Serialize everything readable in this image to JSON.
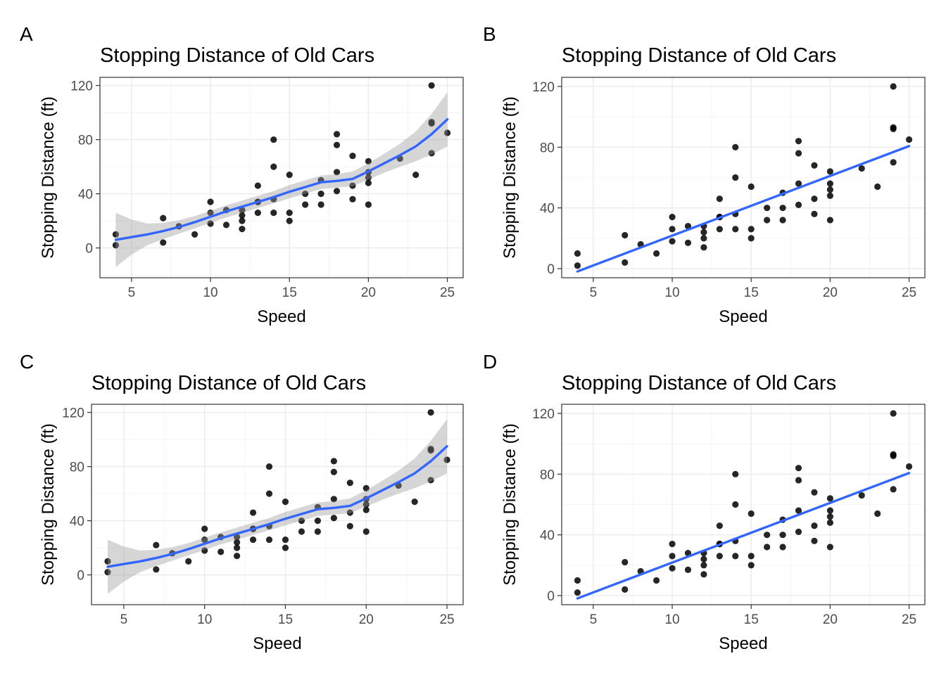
{
  "colors": {
    "point": "#000000",
    "fit_line": "#3366FF",
    "ribbon": "#999999",
    "panel_border": "#333333",
    "grid": "#ebebeb",
    "tick_text": "#4d4d4d"
  },
  "shared": {
    "speed": [
      4,
      4,
      7,
      7,
      8,
      9,
      10,
      10,
      10,
      11,
      11,
      12,
      12,
      12,
      12,
      13,
      13,
      13,
      13,
      14,
      14,
      14,
      14,
      15,
      15,
      15,
      16,
      16,
      17,
      17,
      17,
      18,
      18,
      18,
      18,
      19,
      19,
      19,
      20,
      20,
      20,
      20,
      20,
      22,
      23,
      24,
      24,
      24,
      24,
      25
    ],
    "dist": [
      2,
      10,
      4,
      22,
      16,
      10,
      18,
      26,
      34,
      17,
      28,
      14,
      20,
      24,
      28,
      26,
      34,
      34,
      46,
      26,
      36,
      60,
      80,
      20,
      26,
      54,
      32,
      40,
      32,
      40,
      50,
      42,
      56,
      76,
      84,
      36,
      46,
      68,
      32,
      48,
      52,
      56,
      64,
      66,
      54,
      70,
      92,
      93,
      120,
      85
    ]
  },
  "chart_data": [
    {
      "type": "scatter",
      "panel": "A",
      "title": "Stopping Distance of Old Cars",
      "xlabel": "Speed",
      "ylabel": "Stopping Distance (ft)",
      "xlim": [
        3,
        26
      ],
      "ylim": [
        -22,
        126
      ],
      "xticks": [
        5,
        10,
        15,
        20,
        25
      ],
      "yticks": [
        0,
        40,
        80,
        120
      ],
      "grid": true,
      "smooth": {
        "method": "loess",
        "x": [
          4,
          5,
          6,
          7,
          8,
          9,
          10,
          11,
          12,
          13,
          14,
          15,
          16,
          17,
          18,
          19,
          20,
          21,
          22,
          23,
          24,
          25
        ],
        "y": [
          6,
          8,
          10,
          12.5,
          15.5,
          19,
          23,
          27,
          30.5,
          34,
          37.5,
          41.5,
          45,
          48.5,
          49.5,
          51,
          56.5,
          62.5,
          68.5,
          75,
          84,
          95
        ],
        "lower": [
          -14,
          -5,
          2,
          6.5,
          10.5,
          14.5,
          18.5,
          22.5,
          26,
          29.5,
          33,
          36.5,
          40,
          43.5,
          44.5,
          45.5,
          50.5,
          55.5,
          60,
          64,
          69,
          75
        ],
        "upper": [
          26,
          21,
          18,
          18.5,
          20.5,
          23.5,
          27.5,
          31.5,
          35,
          38.5,
          42,
          46.5,
          50,
          53.5,
          54.5,
          56.5,
          62.5,
          69.5,
          77,
          86,
          99,
          115
        ]
      }
    },
    {
      "type": "scatter",
      "panel": "B",
      "title": "Stopping Distance of Old Cars",
      "xlabel": "Speed",
      "ylabel": "Stopping Distance (ft)",
      "xlim": [
        3,
        26
      ],
      "ylim": [
        -6,
        126
      ],
      "xticks": [
        5,
        10,
        15,
        20,
        25
      ],
      "yticks": [
        0,
        40,
        80,
        120
      ],
      "grid": true,
      "fit": {
        "method": "lm",
        "x": [
          4,
          25
        ],
        "y": [
          -1.85,
          80.73
        ]
      }
    },
    {
      "type": "scatter",
      "panel": "C",
      "title": "Stopping Distance of Old Cars",
      "xlabel": "Speed",
      "ylabel": "Stopping Distance (ft)",
      "xlim": [
        3,
        26
      ],
      "ylim": [
        -22,
        126
      ],
      "xticks": [
        5,
        10,
        15,
        20,
        25
      ],
      "yticks": [
        0,
        40,
        80,
        120
      ],
      "grid": true,
      "smooth": {
        "method": "loess",
        "x": [
          4,
          5,
          6,
          7,
          8,
          9,
          10,
          11,
          12,
          13,
          14,
          15,
          16,
          17,
          18,
          19,
          20,
          21,
          22,
          23,
          24,
          25
        ],
        "y": [
          6,
          8,
          10,
          12.5,
          15.5,
          19,
          23,
          27,
          30.5,
          34,
          37.5,
          41.5,
          45,
          48.5,
          49.5,
          51,
          56.5,
          62.5,
          68.5,
          75,
          84,
          95
        ],
        "lower": [
          -14,
          -5,
          2,
          6.5,
          10.5,
          14.5,
          18.5,
          22.5,
          26,
          29.5,
          33,
          36.5,
          40,
          43.5,
          44.5,
          45.5,
          50.5,
          55.5,
          60,
          64,
          69,
          75
        ],
        "upper": [
          26,
          21,
          18,
          18.5,
          20.5,
          23.5,
          27.5,
          31.5,
          35,
          38.5,
          42,
          46.5,
          50,
          53.5,
          54.5,
          56.5,
          62.5,
          69.5,
          77,
          86,
          99,
          115
        ]
      }
    },
    {
      "type": "scatter",
      "panel": "D",
      "title": "Stopping Distance of Old Cars",
      "xlabel": "Speed",
      "ylabel": "Stopping Distance (ft)",
      "xlim": [
        3,
        26
      ],
      "ylim": [
        -6,
        126
      ],
      "xticks": [
        5,
        10,
        15,
        20,
        25
      ],
      "yticks": [
        0,
        40,
        80,
        120
      ],
      "grid": true,
      "fit": {
        "method": "lm",
        "x": [
          4,
          25
        ],
        "y": [
          -1.85,
          80.73
        ]
      }
    }
  ]
}
